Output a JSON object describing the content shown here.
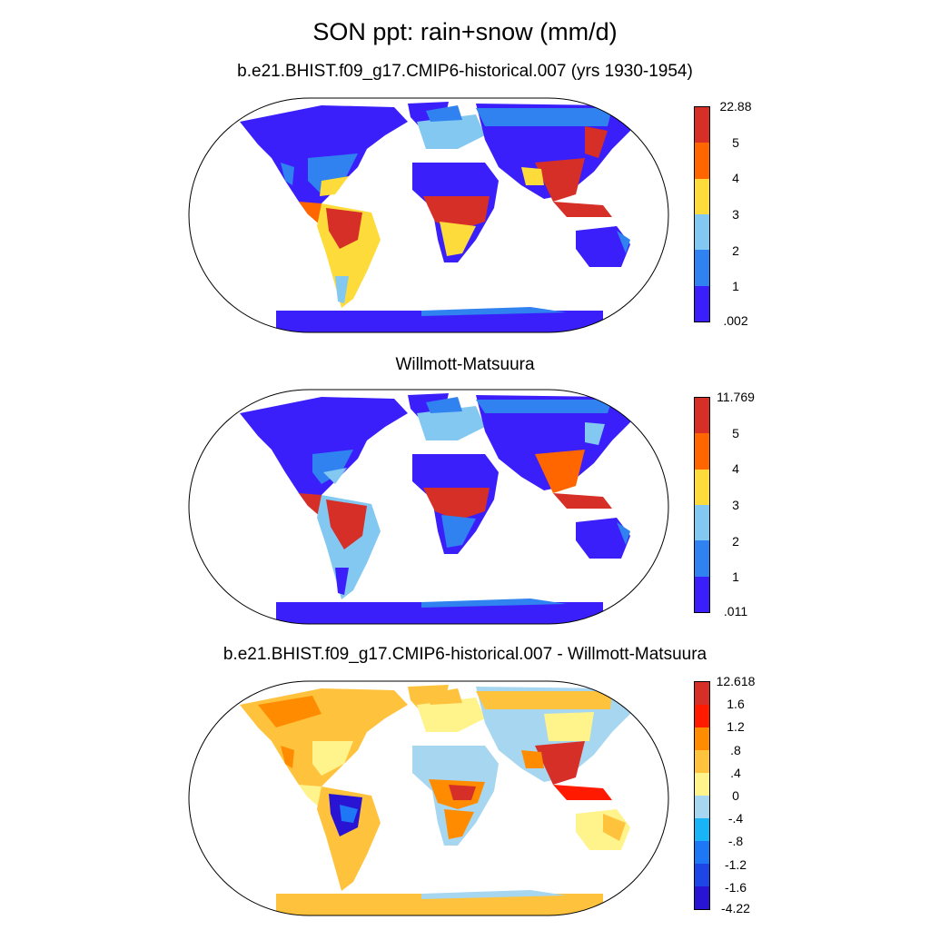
{
  "figure": {
    "title": "SON ppt: rain+snow (mm/d)"
  },
  "panels": [
    {
      "title": "b.e21.BHIST.f09_g17.CMIP6-historical.007 (yrs 1930-1954)",
      "colorbar": {
        "labels": [
          "22.88",
          "5",
          "4",
          "3",
          "2",
          "1",
          ".002"
        ],
        "colors": [
          "#d62f27",
          "#ff6600",
          "#fddb3b",
          "#82c8f0",
          "#2f82f0",
          "#3b1ffa"
        ]
      }
    },
    {
      "title": "Willmott-Matsuura",
      "colorbar": {
        "labels": [
          "11.769",
          "5",
          "4",
          "3",
          "2",
          "1",
          ".011"
        ],
        "colors": [
          "#d62f27",
          "#ff6600",
          "#fddb3b",
          "#82c8f0",
          "#2f82f0",
          "#3b1ffa"
        ]
      }
    },
    {
      "title": "b.e21.BHIST.f09_g17.CMIP6-historical.007 - Willmott-Matsuura",
      "colorbar": {
        "labels": [
          "12.618",
          "1.6",
          "1.2",
          ".8",
          ".4",
          "0",
          "-.4",
          "-.8",
          "-1.2",
          "-1.6",
          "-4.22"
        ],
        "colors": [
          "#d62f27",
          "#ff1a00",
          "#ff8c00",
          "#ffc23c",
          "#fff38c",
          "#a6d6f0",
          "#18b4f5",
          "#1e78f5",
          "#1e46e6",
          "#2814d2"
        ]
      }
    }
  ]
}
